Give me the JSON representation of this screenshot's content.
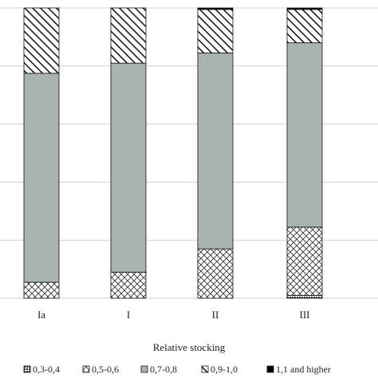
{
  "chart_data": {
    "type": "bar",
    "stacked": true,
    "orientation": "vertical",
    "normalized": true,
    "xlabel": "Relative stocking",
    "ylabel": "",
    "ylim": [
      0,
      100
    ],
    "grid": "horizontal",
    "legend_position": "bottom",
    "categories": [
      "Ia",
      "I",
      "II",
      "III"
    ],
    "series": [
      {
        "name": "0,3-0,4",
        "pattern": "dense-checker",
        "color": "#1a1a1a",
        "values": [
          0,
          0,
          0,
          1
        ]
      },
      {
        "name": "0,5-0,6",
        "pattern": "crosshatch",
        "color": "#ffffff",
        "values": [
          5.5,
          9,
          17,
          23.5
        ]
      },
      {
        "name": "0,7-0,8",
        "pattern": "solid",
        "color": "#a9b3b0",
        "values": [
          72,
          72,
          67.5,
          63.5
        ]
      },
      {
        "name": "0,9-1,0",
        "pattern": "diagonal",
        "color": "#ffffff",
        "values": [
          22.5,
          19,
          15,
          11.5
        ]
      },
      {
        "name": "1,1 and higher",
        "pattern": "solid",
        "color": "#000000",
        "values": [
          0,
          0,
          0.5,
          0.5
        ]
      }
    ]
  }
}
